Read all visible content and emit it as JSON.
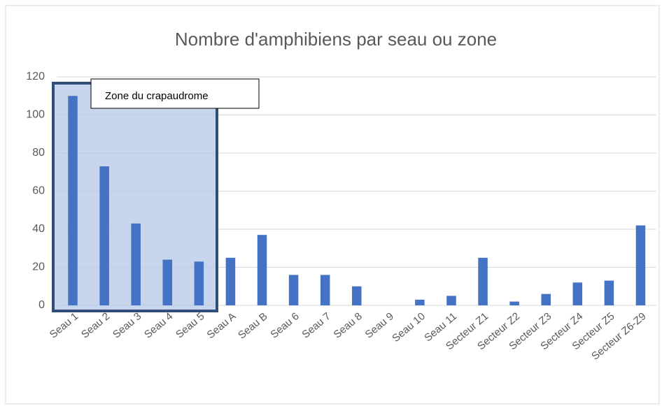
{
  "chart_data": {
    "type": "bar",
    "title": "Nombre d'amphibiens par seau ou zone",
    "categories": [
      "Seau 1",
      "Seau 2",
      "Seau 3",
      "Seau 4",
      "Seau 5",
      "Seau A",
      "Seau B",
      "Seau 6",
      "Seau 7",
      "Seau 8",
      "Seau 9",
      "Seau 10",
      "Seau 11",
      "Secteur Z1",
      "Secteur Z2",
      "Secteur Z3",
      "Secteur Z4",
      "Secteur Z5",
      "Secteur Z6-Z9"
    ],
    "values": [
      110,
      73,
      43,
      24,
      23,
      25,
      37,
      16,
      16,
      10,
      0,
      3,
      5,
      25,
      2,
      6,
      12,
      13,
      42
    ],
    "color": "#4472c4",
    "ylim": [
      0,
      120
    ],
    "yticks": [
      0,
      20,
      40,
      60,
      80,
      100,
      120
    ],
    "grid": true,
    "annotation": "Zone du crapaudrome"
  }
}
